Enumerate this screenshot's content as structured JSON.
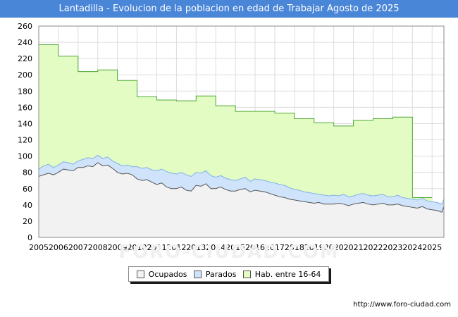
{
  "header": {
    "title": "Lantadilla - Evolucion de la poblacion en edad de Trabajar Agosto de 2025"
  },
  "watermark": "FORO-CIUDAD.COM",
  "source": "http://www.foro-ciudad.com",
  "legend": [
    {
      "label": "Ocupados",
      "color": "#f2f2f2"
    },
    {
      "label": "Parados",
      "color": "#cfe3fa"
    },
    {
      "label": "Hab. entre 16-64",
      "color": "#e2fcc4"
    }
  ],
  "colors": {
    "ocupados_fill": "#f2f2f2",
    "ocupados_line": "#555555",
    "parados_fill": "#cfe3fa",
    "parados_line": "#7fb2e8",
    "hab_fill": "#e2fcc4",
    "hab_line": "#4fa832",
    "grid": "#dddddd",
    "title_bg": "#4a86d8"
  },
  "chart_data": {
    "type": "area",
    "xlim": [
      2005,
      2025.6
    ],
    "ylim": [
      0,
      260
    ],
    "x_ticks": [
      2005,
      2006,
      2007,
      2008,
      2009,
      2010,
      2011,
      2012,
      2013,
      2014,
      2015,
      2016,
      2017,
      2018,
      2019,
      2020,
      2021,
      2022,
      2023,
      2024,
      2025
    ],
    "y_ticks": [
      0,
      20,
      40,
      60,
      80,
      100,
      120,
      140,
      160,
      180,
      200,
      220,
      240,
      260
    ],
    "grid": true,
    "legend_position": "bottom",
    "series": [
      {
        "name": "Hab. entre 16-64",
        "step": true,
        "x": [
          2005,
          2006,
          2007,
          2008,
          2009,
          2010,
          2011,
          2012,
          2013,
          2014,
          2015,
          2016,
          2017,
          2018,
          2019,
          2020,
          2021,
          2022,
          2023,
          2024
        ],
        "values": [
          237,
          223,
          204,
          206,
          193,
          173,
          169,
          168,
          174,
          162,
          155,
          155,
          153,
          146,
          141,
          137,
          144,
          146,
          148,
          49
        ]
      },
      {
        "name": "Parados",
        "x": [
          2005,
          2005.25,
          2005.5,
          2005.75,
          2006,
          2006.25,
          2006.5,
          2006.75,
          2007,
          2007.25,
          2007.5,
          2007.75,
          2008,
          2008.25,
          2008.5,
          2008.75,
          2009,
          2009.25,
          2009.5,
          2009.75,
          2010,
          2010.25,
          2010.5,
          2010.75,
          2011,
          2011.25,
          2011.5,
          2011.75,
          2012,
          2012.25,
          2012.5,
          2012.75,
          2013,
          2013.25,
          2013.5,
          2013.75,
          2014,
          2014.25,
          2014.5,
          2014.75,
          2015,
          2015.25,
          2015.5,
          2015.75,
          2016,
          2016.25,
          2016.5,
          2016.75,
          2017,
          2017.25,
          2017.5,
          2017.75,
          2018,
          2018.25,
          2018.5,
          2018.75,
          2019,
          2019.25,
          2019.5,
          2019.75,
          2020,
          2020.25,
          2020.5,
          2020.75,
          2021,
          2021.25,
          2021.5,
          2021.75,
          2022,
          2022.25,
          2022.5,
          2022.75,
          2023,
          2023.25,
          2023.5,
          2023.75,
          2024,
          2024.25,
          2024.5,
          2024.75,
          2025,
          2025.25,
          2025.5,
          2025.6
        ],
        "values": [
          84,
          88,
          90,
          86,
          89,
          93,
          92,
          90,
          94,
          96,
          98,
          97,
          101,
          97,
          99,
          94,
          91,
          88,
          89,
          87,
          87,
          85,
          86,
          83,
          82,
          84,
          81,
          79,
          78,
          80,
          77,
          75,
          80,
          79,
          82,
          76,
          74,
          76,
          73,
          71,
          70,
          72,
          74,
          69,
          72,
          71,
          70,
          68,
          67,
          65,
          64,
          61,
          59,
          58,
          56,
          55,
          54,
          53,
          52,
          51,
          52,
          51,
          53,
          50,
          51,
          53,
          54,
          52,
          51,
          52,
          53,
          50,
          50,
          52,
          49,
          48,
          47,
          46,
          48,
          45,
          44,
          43,
          41,
          47
        ]
      },
      {
        "name": "Ocupados",
        "x": [
          2005,
          2005.25,
          2005.5,
          2005.75,
          2006,
          2006.25,
          2006.5,
          2006.75,
          2007,
          2007.25,
          2007.5,
          2007.75,
          2008,
          2008.25,
          2008.5,
          2008.75,
          2009,
          2009.25,
          2009.5,
          2009.75,
          2010,
          2010.25,
          2010.5,
          2010.75,
          2011,
          2011.25,
          2011.5,
          2011.75,
          2012,
          2012.25,
          2012.5,
          2012.75,
          2013,
          2013.25,
          2013.5,
          2013.75,
          2014,
          2014.25,
          2014.5,
          2014.75,
          2015,
          2015.25,
          2015.5,
          2015.75,
          2016,
          2016.25,
          2016.5,
          2016.75,
          2017,
          2017.25,
          2017.5,
          2017.75,
          2018,
          2018.25,
          2018.5,
          2018.75,
          2019,
          2019.25,
          2019.5,
          2019.75,
          2020,
          2020.25,
          2020.5,
          2020.75,
          2021,
          2021.25,
          2021.5,
          2021.75,
          2022,
          2022.25,
          2022.5,
          2022.75,
          2023,
          2023.25,
          2023.5,
          2023.75,
          2024,
          2024.25,
          2024.5,
          2024.75,
          2025,
          2025.25,
          2025.5,
          2025.6
        ],
        "values": [
          75,
          77,
          79,
          77,
          80,
          84,
          83,
          82,
          86,
          86,
          88,
          87,
          92,
          88,
          89,
          85,
          80,
          78,
          79,
          77,
          72,
          70,
          71,
          68,
          65,
          67,
          62,
          60,
          60,
          62,
          58,
          57,
          64,
          63,
          66,
          60,
          60,
          62,
          59,
          57,
          57,
          59,
          60,
          56,
          58,
          57,
          56,
          54,
          52,
          50,
          49,
          47,
          46,
          45,
          44,
          43,
          42,
          43,
          41,
          41,
          41,
          42,
          41,
          39,
          41,
          42,
          43,
          41,
          40,
          41,
          42,
          40,
          40,
          41,
          39,
          38,
          37,
          36,
          38,
          35,
          34,
          33,
          31,
          38
        ]
      }
    ]
  }
}
